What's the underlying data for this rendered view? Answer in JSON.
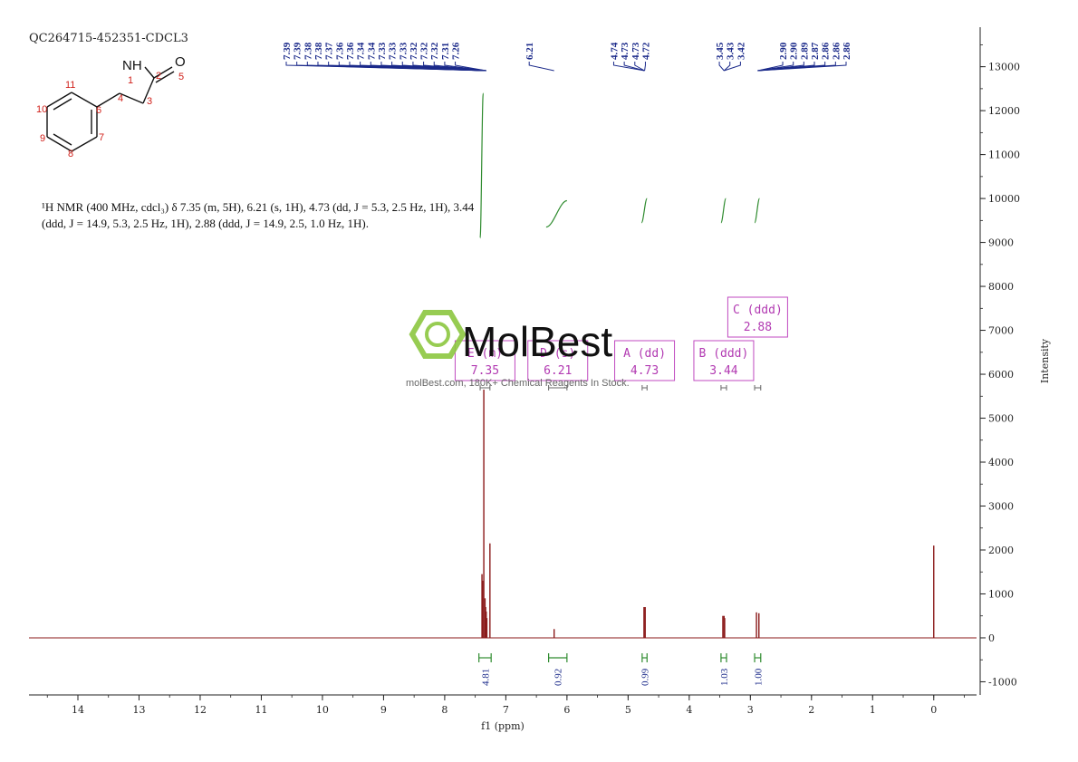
{
  "sample_id": "QC264715-452351-CDCL3",
  "description_lines": [
    "¹H NMR (400 MHz, cdcl₃) δ 7.35 (m, 5H), 6.21 (s, 1H), 4.73 (dd, J = 5.3, 2.5 Hz, 1H), 3.44",
    "(ddd, J = 14.9, 5.3, 2.5 Hz, 1H), 2.88 (ddd, J = 14.9, 2.5, 1.0 Hz, 1H)."
  ],
  "structure": {
    "atom_labels": [
      "NH",
      "O"
    ],
    "atom_numbers": [
      "1",
      "2",
      "3",
      "4",
      "5",
      "6",
      "7",
      "8",
      "9",
      "10",
      "11"
    ]
  },
  "watermark": {
    "brand": "MolBest",
    "tagline": "molBest.com, 180K+ Chemical Reagents In Stock."
  },
  "chart_data": {
    "type": "line",
    "title": "",
    "xlabel": "f1 (ppm)",
    "ylabel": "Intensity",
    "xlim": [
      14.8,
      -0.7
    ],
    "ylim": [
      -1300,
      13900
    ],
    "x_ticks": [
      14,
      13,
      12,
      11,
      10,
      9,
      8,
      7,
      6,
      5,
      4,
      3,
      2,
      1,
      0
    ],
    "y_ticks": [
      -1000,
      0,
      1000,
      2000,
      3000,
      4000,
      5000,
      6000,
      7000,
      8000,
      9000,
      10000,
      11000,
      12000,
      13000
    ],
    "spectrum_peaks": [
      {
        "ppm": 7.39,
        "height": 1450
      },
      {
        "ppm": 7.38,
        "height": 1300
      },
      {
        "ppm": 7.36,
        "height": 5650
      },
      {
        "ppm": 7.34,
        "height": 900
      },
      {
        "ppm": 7.33,
        "height": 700
      },
      {
        "ppm": 7.32,
        "height": 600
      },
      {
        "ppm": 7.31,
        "height": 450
      },
      {
        "ppm": 7.26,
        "height": 2150
      },
      {
        "ppm": 6.21,
        "height": 200
      },
      {
        "ppm": 4.74,
        "height": 700
      },
      {
        "ppm": 4.72,
        "height": 700
      },
      {
        "ppm": 3.45,
        "height": 500
      },
      {
        "ppm": 3.43,
        "height": 500
      },
      {
        "ppm": 3.42,
        "height": 450
      },
      {
        "ppm": 2.9,
        "height": 580
      },
      {
        "ppm": 2.86,
        "height": 560
      },
      {
        "ppm": 0.0,
        "height": 2100
      }
    ],
    "peak_labels": [
      "7.39",
      "7.39",
      "7.38",
      "7.38",
      "7.37",
      "7.36",
      "7.36",
      "7.34",
      "7.34",
      "7.33",
      "7.33",
      "7.33",
      "7.32",
      "7.32",
      "7.32",
      "7.31",
      "7.26",
      "6.21",
      "4.74",
      "4.73",
      "4.73",
      "4.72",
      "3.45",
      "3.43",
      "3.42",
      "2.90",
      "2.90",
      "2.89",
      "2.87",
      "2.86",
      "2.86",
      "2.86"
    ],
    "peak_groups": [
      {
        "start": 0,
        "end": 16,
        "converge_ppm": 7.32
      },
      {
        "start": 17,
        "end": 17,
        "converge_ppm": 6.21
      },
      {
        "start": 18,
        "end": 21,
        "converge_ppm": 4.73
      },
      {
        "start": 22,
        "end": 24,
        "converge_ppm": 3.43
      },
      {
        "start": 25,
        "end": 31,
        "converge_ppm": 2.88
      }
    ],
    "integrals": [
      {
        "value": "4.81",
        "from": 7.44,
        "to": 7.24
      },
      {
        "value": "0.92",
        "from": 6.3,
        "to": 6.0
      },
      {
        "value": "0.99",
        "from": 4.77,
        "to": 4.69
      },
      {
        "value": "1.03",
        "from": 3.48,
        "to": 3.39
      },
      {
        "value": "1.00",
        "from": 2.93,
        "to": 2.83
      }
    ],
    "integral_curves": [
      {
        "from": 7.42,
        "to": 7.37,
        "y_start": 9100,
        "y_end": 12400
      },
      {
        "from": 6.34,
        "to": 6.0,
        "y_start": 9350,
        "y_end": 9950
      },
      {
        "from": 4.78,
        "to": 4.69,
        "y_start": 9450,
        "y_end": 10000
      },
      {
        "from": 3.48,
        "to": 3.4,
        "y_start": 9450,
        "y_end": 10000
      },
      {
        "from": 2.93,
        "to": 2.85,
        "y_start": 9450,
        "y_end": 10000
      }
    ],
    "multiplets": [
      {
        "letter": "E",
        "mult": "(m)",
        "shift": "7.35",
        "range": [
          7.42,
          7.26
        ],
        "row": 1
      },
      {
        "letter": "D",
        "mult": "(s)",
        "shift": "6.21",
        "range": [
          6.3,
          6.0
        ],
        "row": 1
      },
      {
        "letter": "A",
        "mult": "(dd)",
        "shift": "4.73",
        "range": [
          4.77,
          4.69
        ],
        "row": 1
      },
      {
        "letter": "B",
        "mult": "(ddd)",
        "shift": "3.44",
        "range": [
          3.48,
          3.39
        ],
        "row": 1
      },
      {
        "letter": "C",
        "mult": "(ddd)",
        "shift": "2.88",
        "range": [
          2.93,
          2.83
        ],
        "row": 2
      }
    ],
    "colors": {
      "spectrum": "#8b1a1a",
      "peak_label": "#1b2a8a",
      "integral": "#2e8b2e",
      "multiplet_box": "#c04ac0",
      "structure_atom_numbers": "#d0201a",
      "watermark_logo": "#8cc63f"
    },
    "grid": false,
    "legend": "none"
  }
}
